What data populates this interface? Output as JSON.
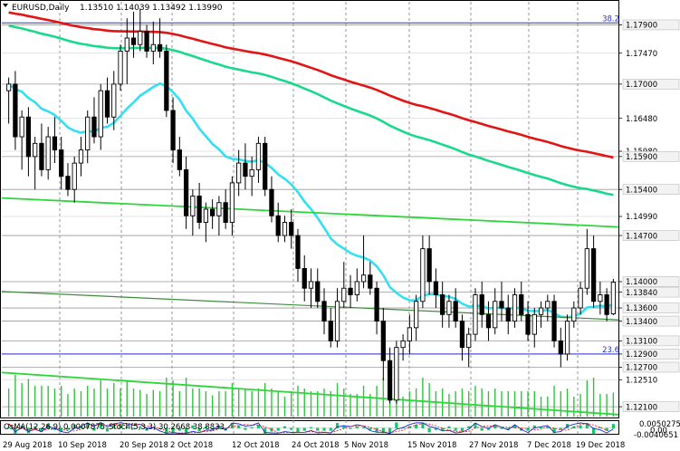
{
  "window": {
    "symbol_timeframe": "EURUSD,Daily",
    "ohlc": "1.13510 1.14039 1.13492 1.13990"
  },
  "colors": {
    "ema200": "#e31414",
    "ema144": "#19d98c",
    "ema50": "#33e0f2",
    "trend": "#2ed63a",
    "candle": "#000000",
    "fibo": "#2a35c8",
    "grid": "#7a7a7a",
    "volume": "#2ec53c",
    "osc_hist": "#15c46a",
    "stoch_main": "#1f2ad0",
    "stoch_signal": "#e31414"
  },
  "chart_data": {
    "type": "candlestick",
    "y_axis_ticks": [
      "1.17900",
      "1.17470",
      "1.17000",
      "1.16480",
      "1.15980",
      "1.15900",
      "1.15400",
      "1.14990",
      "1.14700",
      "1.14000",
      "1.13840",
      "1.13600",
      "1.13400",
      "1.13100",
      "1.12900",
      "1.12700",
      "1.12510",
      "1.12100"
    ],
    "y_axis_highlighted": [
      "1.17900",
      "1.17000",
      "1.15900",
      "1.15400",
      "1.14700",
      "1.14000",
      "1.13840",
      "1.13600",
      "1.13400",
      "1.13100",
      "1.12900",
      "1.12700",
      "1.12100"
    ],
    "x_axis_ticks": [
      "29 Aug 2018",
      "10 Sep 2018",
      "20 Sep 2018",
      "2 Oct 2018",
      "12 Oct 2018",
      "24 Oct 2018",
      "5 Nov 2018",
      "15 Nov 2018",
      "27 Nov 2018",
      "7 Dec 2018",
      "19 Dec 2018"
    ],
    "ylim": [
      1.1195,
      1.1825
    ],
    "fibo_labels": [
      {
        "text": "38.2",
        "price": 1.1793
      },
      {
        "text": "23.6",
        "price": 1.129
      }
    ],
    "candles": [
      {
        "o": 1.169,
        "h": 1.171,
        "l": 1.164,
        "c": 1.17
      },
      {
        "o": 1.17,
        "h": 1.172,
        "l": 1.16,
        "c": 1.162
      },
      {
        "o": 1.162,
        "h": 1.166,
        "l": 1.157,
        "c": 1.165
      },
      {
        "o": 1.165,
        "h": 1.1665,
        "l": 1.156,
        "c": 1.159
      },
      {
        "o": 1.159,
        "h": 1.162,
        "l": 1.154,
        "c": 1.161
      },
      {
        "o": 1.161,
        "h": 1.164,
        "l": 1.156,
        "c": 1.157
      },
      {
        "o": 1.157,
        "h": 1.1635,
        "l": 1.1555,
        "c": 1.162
      },
      {
        "o": 1.162,
        "h": 1.165,
        "l": 1.158,
        "c": 1.16
      },
      {
        "o": 1.16,
        "h": 1.162,
        "l": 1.154,
        "c": 1.156
      },
      {
        "o": 1.156,
        "h": 1.158,
        "l": 1.153,
        "c": 1.154
      },
      {
        "o": 1.154,
        "h": 1.159,
        "l": 1.152,
        "c": 1.158
      },
      {
        "o": 1.158,
        "h": 1.162,
        "l": 1.156,
        "c": 1.16
      },
      {
        "o": 1.16,
        "h": 1.166,
        "l": 1.158,
        "c": 1.165
      },
      {
        "o": 1.165,
        "h": 1.168,
        "l": 1.161,
        "c": 1.162
      },
      {
        "o": 1.162,
        "h": 1.17,
        "l": 1.16,
        "c": 1.169
      },
      {
        "o": 1.169,
        "h": 1.171,
        "l": 1.164,
        "c": 1.165
      },
      {
        "o": 1.165,
        "h": 1.172,
        "l": 1.163,
        "c": 1.17
      },
      {
        "o": 1.17,
        "h": 1.176,
        "l": 1.169,
        "c": 1.175
      },
      {
        "o": 1.175,
        "h": 1.18,
        "l": 1.17,
        "c": 1.177
      },
      {
        "o": 1.177,
        "h": 1.181,
        "l": 1.174,
        "c": 1.176
      },
      {
        "o": 1.176,
        "h": 1.1815,
        "l": 1.175,
        "c": 1.178
      },
      {
        "o": 1.178,
        "h": 1.179,
        "l": 1.174,
        "c": 1.175
      },
      {
        "o": 1.175,
        "h": 1.1795,
        "l": 1.173,
        "c": 1.176
      },
      {
        "o": 1.176,
        "h": 1.18,
        "l": 1.174,
        "c": 1.175
      },
      {
        "o": 1.175,
        "h": 1.176,
        "l": 1.165,
        "c": 1.166
      },
      {
        "o": 1.166,
        "h": 1.168,
        "l": 1.158,
        "c": 1.16
      },
      {
        "o": 1.16,
        "h": 1.162,
        "l": 1.156,
        "c": 1.157
      },
      {
        "o": 1.157,
        "h": 1.159,
        "l": 1.148,
        "c": 1.15
      },
      {
        "o": 1.15,
        "h": 1.154,
        "l": 1.147,
        "c": 1.153
      },
      {
        "o": 1.153,
        "h": 1.155,
        "l": 1.148,
        "c": 1.149
      },
      {
        "o": 1.149,
        "h": 1.152,
        "l": 1.146,
        "c": 1.151
      },
      {
        "o": 1.151,
        "h": 1.1525,
        "l": 1.148,
        "c": 1.15
      },
      {
        "o": 1.15,
        "h": 1.153,
        "l": 1.147,
        "c": 1.152
      },
      {
        "o": 1.152,
        "h": 1.154,
        "l": 1.148,
        "c": 1.149
      },
      {
        "o": 1.149,
        "h": 1.156,
        "l": 1.147,
        "c": 1.155
      },
      {
        "o": 1.155,
        "h": 1.16,
        "l": 1.153,
        "c": 1.158
      },
      {
        "o": 1.158,
        "h": 1.161,
        "l": 1.154,
        "c": 1.156
      },
      {
        "o": 1.156,
        "h": 1.159,
        "l": 1.153,
        "c": 1.157
      },
      {
        "o": 1.157,
        "h": 1.162,
        "l": 1.155,
        "c": 1.161
      },
      {
        "o": 1.161,
        "h": 1.162,
        "l": 1.153,
        "c": 1.154
      },
      {
        "o": 1.154,
        "h": 1.156,
        "l": 1.149,
        "c": 1.15
      },
      {
        "o": 1.15,
        "h": 1.152,
        "l": 1.146,
        "c": 1.147
      },
      {
        "o": 1.147,
        "h": 1.15,
        "l": 1.146,
        "c": 1.149
      },
      {
        "o": 1.149,
        "h": 1.151,
        "l": 1.145,
        "c": 1.147
      },
      {
        "o": 1.147,
        "h": 1.148,
        "l": 1.14,
        "c": 1.142
      },
      {
        "o": 1.142,
        "h": 1.144,
        "l": 1.137,
        "c": 1.139
      },
      {
        "o": 1.139,
        "h": 1.142,
        "l": 1.136,
        "c": 1.14
      },
      {
        "o": 1.14,
        "h": 1.142,
        "l": 1.136,
        "c": 1.137
      },
      {
        "o": 1.137,
        "h": 1.139,
        "l": 1.132,
        "c": 1.134
      },
      {
        "o": 1.134,
        "h": 1.136,
        "l": 1.13,
        "c": 1.131
      },
      {
        "o": 1.131,
        "h": 1.139,
        "l": 1.13,
        "c": 1.137
      },
      {
        "o": 1.137,
        "h": 1.143,
        "l": 1.136,
        "c": 1.139
      },
      {
        "o": 1.139,
        "h": 1.141,
        "l": 1.136,
        "c": 1.138
      },
      {
        "o": 1.138,
        "h": 1.142,
        "l": 1.137,
        "c": 1.14
      },
      {
        "o": 1.14,
        "h": 1.147,
        "l": 1.139,
        "c": 1.141
      },
      {
        "o": 1.141,
        "h": 1.143,
        "l": 1.138,
        "c": 1.139
      },
      {
        "o": 1.139,
        "h": 1.14,
        "l": 1.132,
        "c": 1.134
      },
      {
        "o": 1.134,
        "h": 1.136,
        "l": 1.125,
        "c": 1.128
      },
      {
        "o": 1.128,
        "h": 1.13,
        "l": 1.1215,
        "c": 1.122
      },
      {
        "o": 1.122,
        "h": 1.131,
        "l": 1.1215,
        "c": 1.13
      },
      {
        "o": 1.13,
        "h": 1.132,
        "l": 1.128,
        "c": 1.131
      },
      {
        "o": 1.131,
        "h": 1.135,
        "l": 1.129,
        "c": 1.133
      },
      {
        "o": 1.133,
        "h": 1.138,
        "l": 1.131,
        "c": 1.137
      },
      {
        "o": 1.137,
        "h": 1.147,
        "l": 1.136,
        "c": 1.145
      },
      {
        "o": 1.145,
        "h": 1.147,
        "l": 1.138,
        "c": 1.14
      },
      {
        "o": 1.14,
        "h": 1.142,
        "l": 1.136,
        "c": 1.138
      },
      {
        "o": 1.138,
        "h": 1.14,
        "l": 1.133,
        "c": 1.135
      },
      {
        "o": 1.135,
        "h": 1.138,
        "l": 1.133,
        "c": 1.137
      },
      {
        "o": 1.137,
        "h": 1.139,
        "l": 1.133,
        "c": 1.134
      },
      {
        "o": 1.134,
        "h": 1.135,
        "l": 1.128,
        "c": 1.13
      },
      {
        "o": 1.13,
        "h": 1.133,
        "l": 1.127,
        "c": 1.132
      },
      {
        "o": 1.132,
        "h": 1.139,
        "l": 1.131,
        "c": 1.138
      },
      {
        "o": 1.138,
        "h": 1.14,
        "l": 1.133,
        "c": 1.135
      },
      {
        "o": 1.135,
        "h": 1.137,
        "l": 1.131,
        "c": 1.133
      },
      {
        "o": 1.133,
        "h": 1.139,
        "l": 1.132,
        "c": 1.137
      },
      {
        "o": 1.137,
        "h": 1.14,
        "l": 1.134,
        "c": 1.136
      },
      {
        "o": 1.136,
        "h": 1.138,
        "l": 1.132,
        "c": 1.134
      },
      {
        "o": 1.134,
        "h": 1.139,
        "l": 1.133,
        "c": 1.138
      },
      {
        "o": 1.138,
        "h": 1.14,
        "l": 1.134,
        "c": 1.135
      },
      {
        "o": 1.135,
        "h": 1.137,
        "l": 1.131,
        "c": 1.132
      },
      {
        "o": 1.132,
        "h": 1.136,
        "l": 1.13,
        "c": 1.135
      },
      {
        "o": 1.135,
        "h": 1.137,
        "l": 1.133,
        "c": 1.136
      },
      {
        "o": 1.136,
        "h": 1.138,
        "l": 1.134,
        "c": 1.137
      },
      {
        "o": 1.137,
        "h": 1.138,
        "l": 1.13,
        "c": 1.131
      },
      {
        "o": 1.131,
        "h": 1.133,
        "l": 1.127,
        "c": 1.129
      },
      {
        "o": 1.129,
        "h": 1.135,
        "l": 1.128,
        "c": 1.134
      },
      {
        "o": 1.134,
        "h": 1.137,
        "l": 1.133,
        "c": 1.136
      },
      {
        "o": 1.136,
        "h": 1.14,
        "l": 1.135,
        "c": 1.139
      },
      {
        "o": 1.139,
        "h": 1.148,
        "l": 1.138,
        "c": 1.145
      },
      {
        "o": 1.145,
        "h": 1.147,
        "l": 1.136,
        "c": 1.137
      },
      {
        "o": 1.137,
        "h": 1.14,
        "l": 1.135,
        "c": 1.138
      },
      {
        "o": 1.138,
        "h": 1.139,
        "l": 1.134,
        "c": 1.135
      },
      {
        "o": 1.1351,
        "h": 1.1404,
        "l": 1.1349,
        "c": 1.1399
      }
    ],
    "indicators": {
      "stochastic": {
        "label": "Stoch(5,3,3) 30.2668 38.8833"
      },
      "osma": {
        "label": "OsMA(12,26,9) 0.0007875"
      },
      "osc_axis_ticks": [
        "0.0050275",
        "0.00",
        "-0.0040651"
      ]
    }
  }
}
